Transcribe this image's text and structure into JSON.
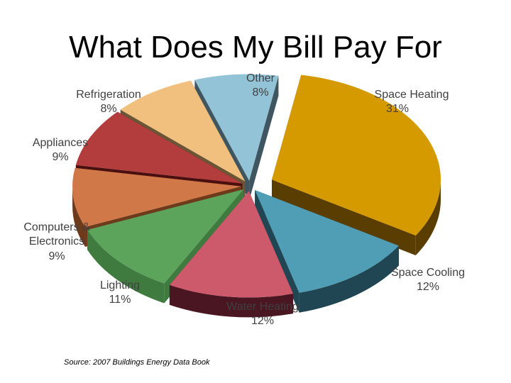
{
  "title": "What Does My Bill Pay For",
  "source": "Source: 2007 Buildings Energy Data Book",
  "chart_data": {
    "type": "pie",
    "title": "What Does My Bill Pay For",
    "slices": [
      {
        "name": "Space Heating",
        "value": 31,
        "label": "31%",
        "color": "#d49a00",
        "side": "#5a3d00",
        "exploded": true
      },
      {
        "name": "Space Cooling",
        "value": 12,
        "label": "12%",
        "color": "#4f9eb6",
        "side": "#1f4652",
        "exploded": false
      },
      {
        "name": "Water Heating",
        "value": 12,
        "label": "12%",
        "color": "#cc5a6b",
        "side": "#4a1622",
        "exploded": false
      },
      {
        "name": "Lighting",
        "value": 11,
        "label": "11%",
        "color": "#5ca35c",
        "side": "#3f7a3f",
        "exploded": false
      },
      {
        "name": "Computers & Electronics",
        "value": 9,
        "label": "9%",
        "color": "#d07848",
        "side": "#6e3a1c",
        "exploded": false
      },
      {
        "name": "Appliances",
        "value": 9,
        "label": "9%",
        "color": "#b33c3c",
        "side": "#4a1010",
        "exploded": false
      },
      {
        "name": "Refrigeration",
        "value": 8,
        "label": "8%",
        "color": "#f2c07e",
        "side": "#6b5535",
        "exploded": false
      },
      {
        "name": "Other",
        "value": 8,
        "label": "8%",
        "color": "#92c3d6",
        "side": "#3f5660",
        "exploded": false
      }
    ],
    "legend": "none",
    "source": "Source: 2007 Buildings Energy Data Book"
  }
}
